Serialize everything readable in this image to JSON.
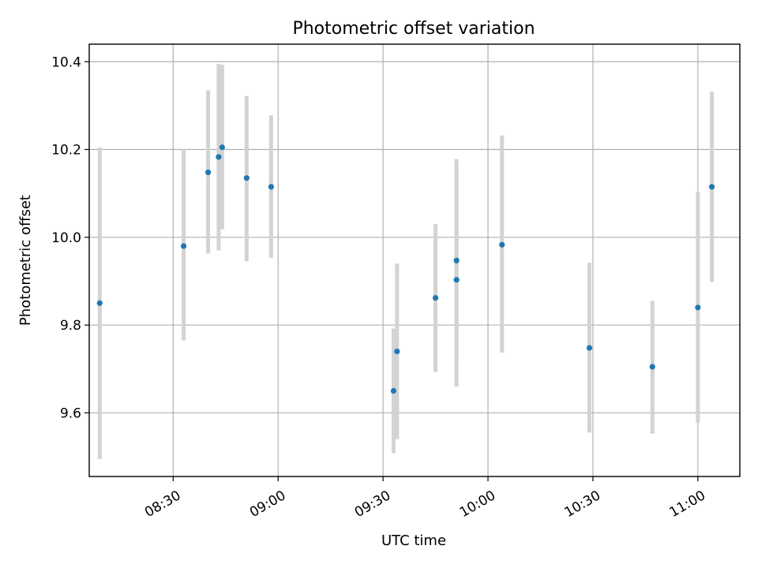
{
  "chart_data": {
    "type": "scatter",
    "title": "Photometric offset variation",
    "xlabel": "UTC time",
    "ylabel": "Photometric offset",
    "xlim": [
      "08:06",
      "11:12"
    ],
    "ylim": [
      9.455,
      10.44
    ],
    "xticks": [
      "08:30",
      "09:00",
      "09:30",
      "10:00",
      "10:30",
      "11:00"
    ],
    "yticks": [
      9.6,
      9.8,
      10.0,
      10.2,
      10.4
    ],
    "grid": true,
    "marker_color": "#1f77b4",
    "errorbar_color": "#d3d3d3",
    "points": [
      {
        "x": "08:09",
        "y": 9.85,
        "ylo": 9.495,
        "yhi": 10.205
      },
      {
        "x": "08:33",
        "y": 9.98,
        "ylo": 9.765,
        "yhi": 10.2
      },
      {
        "x": "08:40",
        "y": 10.148,
        "ylo": 9.963,
        "yhi": 10.335
      },
      {
        "x": "08:43",
        "y": 10.183,
        "ylo": 9.97,
        "yhi": 10.395
      },
      {
        "x": "08:44",
        "y": 10.205,
        "ylo": 10.018,
        "yhi": 10.393
      },
      {
        "x": "08:51",
        "y": 10.135,
        "ylo": 9.945,
        "yhi": 10.322
      },
      {
        "x": "08:58",
        "y": 10.115,
        "ylo": 9.953,
        "yhi": 10.278
      },
      {
        "x": "09:33",
        "y": 9.65,
        "ylo": 9.508,
        "yhi": 9.792
      },
      {
        "x": "09:34",
        "y": 9.74,
        "ylo": 9.54,
        "yhi": 9.94
      },
      {
        "x": "09:45",
        "y": 9.862,
        "ylo": 9.693,
        "yhi": 10.03
      },
      {
        "x": "09:51",
        "y": 9.903,
        "ylo": 9.66,
        "yhi": 10.148
      },
      {
        "x": "09:51",
        "y": 9.947,
        "ylo": 9.718,
        "yhi": 10.178
      },
      {
        "x": "10:04",
        "y": 9.983,
        "ylo": 9.737,
        "yhi": 10.232
      },
      {
        "x": "10:29",
        "y": 9.748,
        "ylo": 9.555,
        "yhi": 9.942
      },
      {
        "x": "10:47",
        "y": 9.705,
        "ylo": 9.553,
        "yhi": 9.855
      },
      {
        "x": "11:00",
        "y": 9.84,
        "ylo": 9.578,
        "yhi": 10.103
      },
      {
        "x": "11:04",
        "y": 10.115,
        "ylo": 9.898,
        "yhi": 10.332
      }
    ]
  }
}
